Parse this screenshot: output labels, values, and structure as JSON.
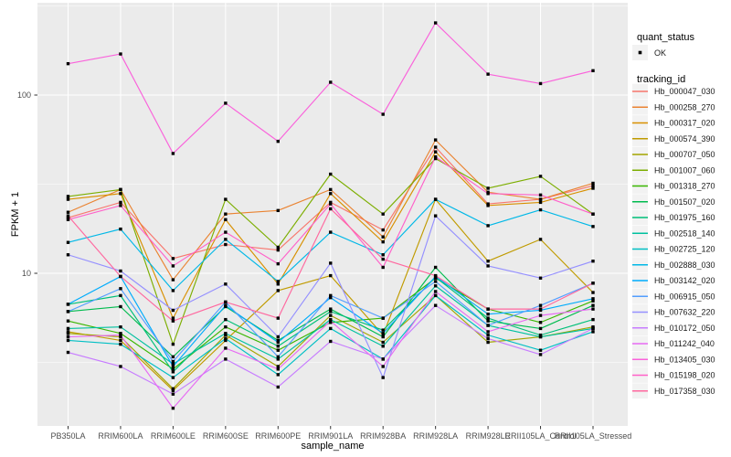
{
  "chart_data": {
    "type": "line",
    "title": "",
    "xlabel": "sample_name",
    "ylabel": "FPKM + 1",
    "y_scale": "log10",
    "grid": true,
    "legend_position": "right",
    "panel_color": "#EBEBEB",
    "gridline_color": "#FFFFFF",
    "point_color": "#000000",
    "tick_text_color": "#4D4D4D",
    "y_tick_labels": [
      "100",
      "10"
    ],
    "y_tick_values": [
      100,
      10
    ],
    "y_minor_gridline_values": [
      316.23,
      31.62,
      3.162
    ],
    "ylim": [
      1.45,
      315
    ],
    "categories": [
      "PB350LA",
      "RRIM600LA",
      "RRIM600LE",
      "RRIM600SE",
      "RRIM600PE",
      "RRIM901LA",
      "RRIM928BA",
      "RRIM928LA",
      "RRIM928LE",
      "RRII105LA_Control",
      "RRII105LA_Stressed"
    ],
    "series": [
      {
        "name": "Hb_000047_030",
        "color": "#F8766D",
        "values": [
          20.5,
          25,
          12.1,
          14.5,
          13.5,
          25,
          17.5,
          51,
          24.5,
          26,
          31
        ]
      },
      {
        "name": "Hb_000258_270",
        "color": "#EA8331",
        "values": [
          22,
          29.5,
          9.2,
          21.5,
          22.5,
          29.5,
          16,
          56,
          28.5,
          26,
          32
        ]
      },
      {
        "name": "Hb_000317_020",
        "color": "#D89000",
        "values": [
          26,
          28,
          5.6,
          20,
          8.7,
          28,
          15,
          48,
          24,
          25,
          30
        ]
      },
      {
        "name": "Hb_000574_390",
        "color": "#C09B00",
        "values": [
          4.7,
          4.2,
          2.2,
          4.2,
          8.0,
          9.7,
          4.5,
          26,
          11.7,
          15.5,
          7.8
        ]
      },
      {
        "name": "Hb_000707_050",
        "color": "#A3A500",
        "values": [
          4.6,
          4.4,
          2.25,
          4.5,
          3.0,
          5.8,
          4.1,
          7.5,
          4.1,
          4.4,
          5.0
        ]
      },
      {
        "name": "Hb_001007_060",
        "color": "#7CAE00",
        "values": [
          27,
          29.5,
          4.0,
          26,
          14,
          36,
          21.5,
          44,
          30,
          35,
          21.5
        ]
      },
      {
        "name": "Hb_001318_270",
        "color": "#39B600",
        "values": [
          5.4,
          4.6,
          2.9,
          5.0,
          3.7,
          5.3,
          5.6,
          9.4,
          6.3,
          5.3,
          7.0
        ]
      },
      {
        "name": "Hb_001507_020",
        "color": "#00BB4E",
        "values": [
          6.1,
          6.5,
          3.4,
          6.5,
          4.2,
          6.3,
          4.4,
          10.8,
          5.4,
          4.9,
          6.6
        ]
      },
      {
        "name": "Hb_001975_160",
        "color": "#00C079",
        "values": [
          6.7,
          7.5,
          2.8,
          5.5,
          3.9,
          6.1,
          4.8,
          9.5,
          5.6,
          4.5,
          5.5
        ]
      },
      {
        "name": "Hb_002518_140",
        "color": "#00C19F",
        "values": [
          4.9,
          5.0,
          3.1,
          4.6,
          3.3,
          5.5,
          3.9,
          8.5,
          5.1,
          4.4,
          4.9
        ]
      },
      {
        "name": "Hb_002725_120",
        "color": "#00BFC4",
        "values": [
          4.2,
          4.0,
          2.6,
          4.3,
          2.7,
          4.9,
          3.3,
          7.5,
          4.5,
          3.7,
          4.7
        ]
      },
      {
        "name": "Hb_002888_030",
        "color": "#00B8E7",
        "values": [
          14.9,
          17.7,
          8.0,
          15.5,
          9.0,
          17,
          12.7,
          26,
          18.5,
          22.7,
          18.3
        ]
      },
      {
        "name": "Hb_003142_020",
        "color": "#00ACFC",
        "values": [
          6.7,
          9.6,
          3.0,
          6.6,
          4.1,
          7.3,
          4.6,
          9.6,
          5.9,
          6.2,
          7.2
        ]
      },
      {
        "name": "Hb_006915_050",
        "color": "#529EFF",
        "values": [
          6.1,
          8.2,
          3.2,
          6.9,
          3.4,
          7.5,
          5.6,
          9.0,
          5.1,
          6.6,
          8.8
        ]
      },
      {
        "name": "Hb_007632_220",
        "color": "#9590FF",
        "values": [
          12.7,
          10.3,
          6.2,
          8.7,
          4.4,
          11.4,
          2.6,
          21,
          11.0,
          9.4,
          11.7
        ]
      },
      {
        "name": "Hb_010172_050",
        "color": "#C77CFF",
        "values": [
          3.6,
          3.0,
          2.1,
          3.3,
          2.3,
          4.15,
          3.3,
          6.6,
          4.3,
          3.5,
          4.9
        ]
      },
      {
        "name": "Hb_011242_040",
        "color": "#E76BF3",
        "values": [
          4.4,
          4.5,
          1.75,
          3.8,
          2.9,
          5.4,
          3.0,
          7.9,
          4.7,
          5.8,
          6.3
        ]
      },
      {
        "name": "Hb_013405_030",
        "color": "#FA62DB",
        "values": [
          150,
          170,
          47,
          90,
          55,
          118,
          78,
          254,
          131,
          116,
          137
        ]
      },
      {
        "name": "Hb_015198_020",
        "color": "#FF61C9",
        "values": [
          20,
          24,
          11,
          17,
          11.3,
          24.5,
          10.8,
          45,
          28,
          27.5,
          21.5
        ]
      },
      {
        "name": "Hb_017358_030",
        "color": "#FF689F",
        "values": [
          21,
          9.6,
          5.4,
          6.9,
          5.6,
          23,
          12,
          9.7,
          6.3,
          6.3,
          8.8
        ]
      }
    ],
    "legend": {
      "quant_status_title": "quant_status",
      "quant_status_items": [
        {
          "label": "OK",
          "marker": "black-point"
        }
      ],
      "tracking_id_title": "tracking_id",
      "key_background": "#F2F2F2"
    }
  }
}
